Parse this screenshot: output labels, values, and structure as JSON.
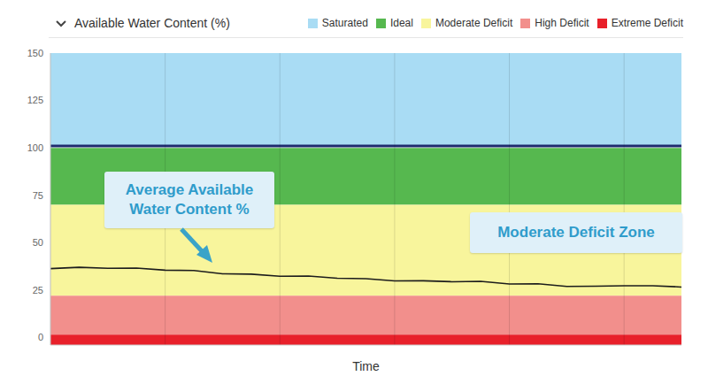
{
  "chart_data": {
    "type": "line",
    "title": "Available Water Content (%)",
    "x_label": "Time",
    "x": [
      0,
      1,
      2,
      3,
      4,
      5,
      6,
      7,
      8,
      9,
      10,
      11,
      12,
      13,
      14,
      15,
      16,
      17,
      18,
      19,
      20,
      21,
      22
    ],
    "xlim": [
      0,
      22
    ],
    "xticks": [
      0,
      4,
      8,
      12,
      16,
      20
    ],
    "ylim": [
      -4,
      150
    ],
    "yticks": [
      0,
      25,
      50,
      75,
      100,
      125,
      150
    ],
    "grid": true,
    "tick_labels": "y",
    "legend": "top-right",
    "series": [
      {
        "color": "#1c1c1c",
        "values": [
          36.3,
          37,
          36.5,
          36.6,
          35.5,
          35.3,
          33.6,
          33.4,
          32.3,
          32.4,
          31.2,
          31,
          29.8,
          29.9,
          29.4,
          29.6,
          28.2,
          28.3,
          26.9,
          27,
          27.3,
          27.3,
          26.6
        ]
      }
    ],
    "zones": [
      {
        "name": "Saturated",
        "color": "#a9dcf4",
        "from": 101,
        "to": 150
      },
      {
        "name": "Ideal",
        "color": "#56b84f",
        "from": 70,
        "to": 100
      },
      {
        "name": "Moderate Deficit",
        "color": "#f8f59c",
        "from": 22,
        "to": 70
      },
      {
        "name": "High Deficit",
        "color": "#f28f8c",
        "from": 1.5,
        "to": 22
      },
      {
        "name": "Extreme Deficit",
        "color": "#e8202a",
        "from": -4,
        "to": 1.5
      }
    ],
    "reference_lines": [
      {
        "value": 101,
        "color": "#1e2b6e"
      }
    ],
    "annotations": [
      {
        "text": "Average Available Water Content %"
      },
      {
        "text": "Moderate Deficit Zone"
      }
    ]
  }
}
